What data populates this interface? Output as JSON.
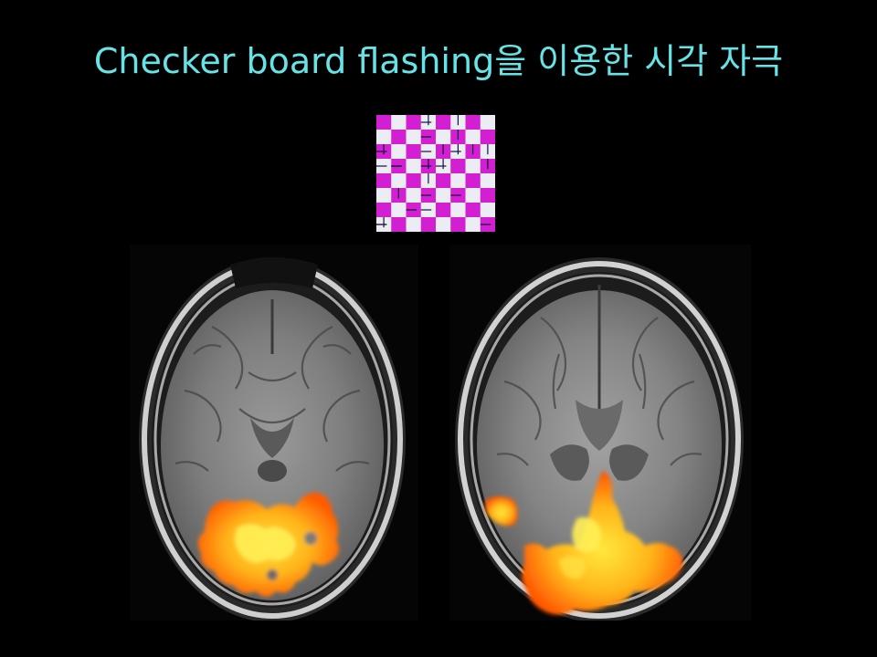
{
  "slide": {
    "title": "Checker board flashing을 이용한 시각 자극",
    "title_color": "#66e3e6",
    "background": "#000000"
  },
  "stimulus": {
    "icon": "checkerboard-stimulus-icon",
    "colors": {
      "a": "#d21fd2",
      "b": "#ececf5",
      "edge": "#1a1a3a"
    },
    "grid": 8
  },
  "images": [
    {
      "id": "brain-left",
      "description_icon": "axial-mri-activation-icon"
    },
    {
      "id": "brain-right",
      "description_icon": "axial-mri-activation-icon"
    }
  ]
}
